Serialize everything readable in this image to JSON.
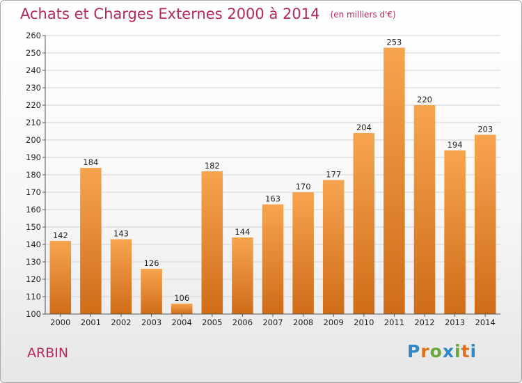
{
  "title": "Achats et Charges Externes 2000 à 2014",
  "subtitle": "(en milliers d'€)",
  "place": "ARBIN",
  "logo": {
    "text": "Proxiti",
    "colors": [
      "#2f88c6",
      "#e06f1b",
      "#67a839",
      "#2f88c6",
      "#67a839",
      "#e06f1b",
      "#2f88c6"
    ]
  },
  "colors": {
    "title": "#b5275f",
    "bar_top": "#f7a44f",
    "bar_bottom": "#cf6c18",
    "grid": "#d3d3d3",
    "axis": "#555555"
  },
  "chart_data": {
    "type": "bar",
    "title": "Achats et Charges Externes 2000 à 2014",
    "subtitle": "(en milliers d'€)",
    "xlabel": "",
    "ylabel": "",
    "categories": [
      "2000",
      "2001",
      "2002",
      "2003",
      "2004",
      "2005",
      "2006",
      "2007",
      "2008",
      "2009",
      "2010",
      "2011",
      "2012",
      "2013",
      "2014"
    ],
    "values": [
      142,
      184,
      143,
      126,
      106,
      182,
      144,
      163,
      170,
      177,
      204,
      253,
      220,
      194,
      203
    ],
    "ylim": [
      100,
      260
    ],
    "yticks": [
      100,
      110,
      120,
      130,
      140,
      150,
      160,
      170,
      180,
      190,
      200,
      210,
      220,
      230,
      240,
      250,
      260
    ],
    "grid": true,
    "legend": "none"
  }
}
